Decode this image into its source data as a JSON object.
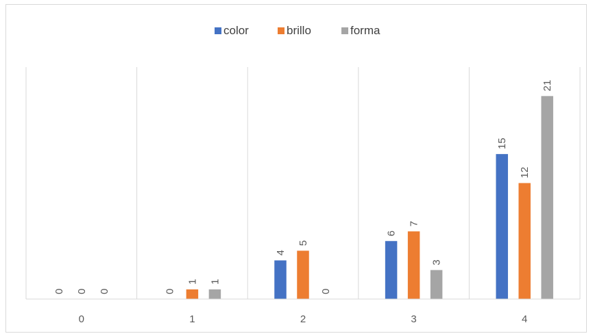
{
  "chart_data": {
    "type": "bar",
    "categories": [
      "0",
      "1",
      "2",
      "3",
      "4"
    ],
    "series": [
      {
        "name": "color",
        "color": "#4472c4",
        "values": [
          0,
          0,
          4,
          6,
          15
        ]
      },
      {
        "name": "brillo",
        "color": "#ed7d31",
        "values": [
          0,
          1,
          5,
          7,
          12
        ]
      },
      {
        "name": "forma",
        "color": "#a5a5a5",
        "values": [
          0,
          1,
          0,
          3,
          21
        ]
      }
    ],
    "title": "",
    "xlabel": "",
    "ylabel": "",
    "ylim": [
      0,
      24
    ],
    "grid": "vertical category separators",
    "legend_position": "top",
    "data_labels": "rotated 90 degrees above bars"
  }
}
